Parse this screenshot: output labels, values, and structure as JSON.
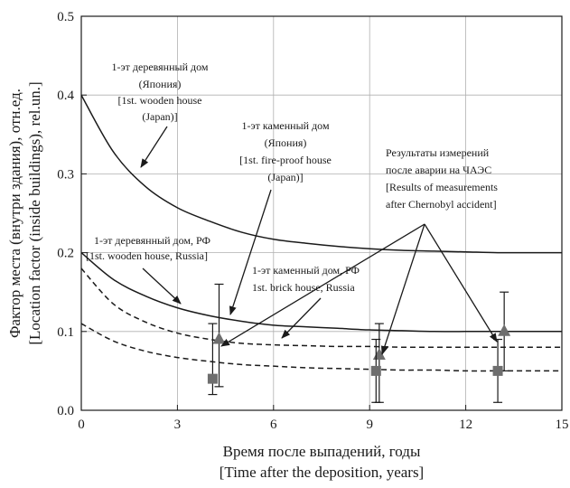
{
  "chart_data": {
    "type": "line",
    "xlabel_ru": "Время после выпадений, годы",
    "xlabel_en": "[Time after the deposition, years]",
    "ylabel_ru": "Фактор места (внутри здания), отн.ед.",
    "ylabel_en": "[Location factor (inside buildings), rel.un.]",
    "xlim": [
      0,
      15
    ],
    "ylim": [
      0,
      0.5
    ],
    "xticks": [
      0,
      3,
      6,
      9,
      12,
      15
    ],
    "xtick_labels": [
      "0",
      "3",
      "6",
      "9",
      "12",
      "15"
    ],
    "yticks": [
      0,
      0.1,
      0.2,
      0.3,
      0.4,
      0.5
    ],
    "ytick_labels": [
      "0.0",
      "0.1",
      "0.2",
      "0.3",
      "0.4",
      "0.5"
    ],
    "grid": true,
    "series": [
      {
        "style": "solid",
        "x": [
          0,
          1,
          2,
          3,
          4,
          5,
          6,
          7,
          8,
          9,
          10,
          11,
          12,
          13,
          14,
          15
        ],
        "y": [
          0.4,
          0.328,
          0.284,
          0.257,
          0.24,
          0.226,
          0.217,
          0.212,
          0.208,
          0.205,
          0.203,
          0.202,
          0.201,
          0.2,
          0.2,
          0.2
        ]
      },
      {
        "style": "solid",
        "x": [
          0,
          1,
          2,
          3,
          4,
          5,
          6,
          7,
          8,
          9,
          10,
          11,
          12,
          13,
          14,
          15
        ],
        "y": [
          0.2,
          0.166,
          0.145,
          0.13,
          0.12,
          0.113,
          0.108,
          0.106,
          0.104,
          0.102,
          0.101,
          0.1,
          0.1,
          0.1,
          0.1,
          0.1
        ]
      },
      {
        "style": "dashed",
        "x": [
          0,
          1,
          2,
          3,
          4,
          5,
          6,
          7,
          8,
          9,
          10,
          11,
          12,
          13,
          14,
          15
        ],
        "y": [
          0.18,
          0.135,
          0.112,
          0.098,
          0.09,
          0.085,
          0.083,
          0.082,
          0.081,
          0.081,
          0.08,
          0.08,
          0.08,
          0.08,
          0.08,
          0.08
        ]
      },
      {
        "style": "dashed",
        "x": [
          0,
          1,
          2,
          3,
          4,
          5,
          6,
          7,
          8,
          9,
          10,
          11,
          12,
          13,
          14,
          15
        ],
        "y": [
          0.11,
          0.088,
          0.075,
          0.067,
          0.062,
          0.058,
          0.056,
          0.054,
          0.053,
          0.052,
          0.051,
          0.051,
          0.05,
          0.05,
          0.05,
          0.05
        ]
      }
    ],
    "measurements": [
      {
        "x": 4.3,
        "y": 0.09,
        "ymin": 0.03,
        "ymax": 0.16,
        "marker": "triangle"
      },
      {
        "x": 4.1,
        "y": 0.04,
        "ymin": 0.02,
        "ymax": 0.11,
        "marker": "square"
      },
      {
        "x": 9.3,
        "y": 0.07,
        "ymin": 0.01,
        "ymax": 0.11,
        "marker": "triangle"
      },
      {
        "x": 9.2,
        "y": 0.05,
        "ymin": 0.01,
        "ymax": 0.09,
        "marker": "square"
      },
      {
        "x": 13.2,
        "y": 0.1,
        "ymin": 0.05,
        "ymax": 0.15,
        "marker": "triangle"
      },
      {
        "x": 13.0,
        "y": 0.05,
        "ymin": 0.01,
        "ymax": 0.09,
        "marker": "square"
      }
    ],
    "annotations": {
      "wooden_japan": [
        "1-эт деревянный дом",
        "(Япония)",
        "[1st. wooden house",
        "(Japan)]"
      ],
      "fireproof_japan": [
        "1-эт каменный дом",
        "(Япония)",
        "[1st. fire-proof house",
        "(Japan)]"
      ],
      "measurements": [
        "Результаты измерений",
        "после аварии на ЧАЭС",
        "[Results of measurements",
        "after Chernobyl accident]"
      ],
      "wooden_russia": [
        "1-эт деревянный дом,   РФ",
        "[1st. wooden house, Russia]"
      ],
      "brick_russia": [
        "1-эт каменный дом, РФ",
        "1st. brick house, Russia"
      ]
    },
    "colors": {
      "line": "#1a1a1a",
      "marker": "#6e6e6e",
      "grid": "#b0b0b0"
    }
  }
}
